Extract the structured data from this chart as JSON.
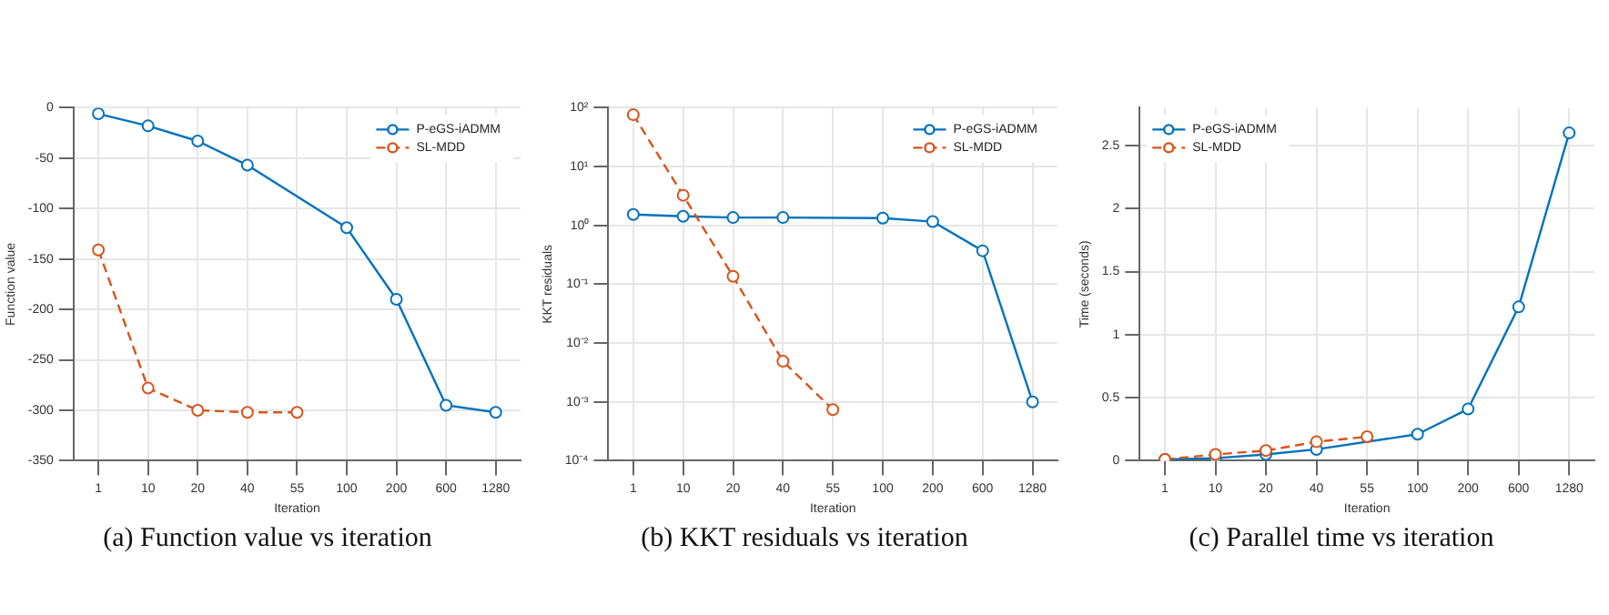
{
  "chart_data": [
    {
      "type": "line",
      "xlabel": "Iteration",
      "ylabel": "Function value",
      "categories": [
        "1",
        "10",
        "20",
        "40",
        "55",
        "100",
        "200",
        "600",
        "1280"
      ],
      "series": [
        {
          "name": "P-eGS-iADMM",
          "color": "#0072bd",
          "line_style": "solid",
          "values": [
            -6,
            -18,
            -33,
            -57,
            null,
            -119,
            -190,
            -295,
            -302
          ]
        },
        {
          "name": "SL-MDD",
          "color": "#d95319",
          "line_style": "dashed",
          "values": [
            -141,
            -278,
            -300,
            -302,
            -302,
            null,
            null,
            null,
            null
          ]
        }
      ],
      "ylim": [
        -350,
        0
      ],
      "yticks": [
        -350,
        -300,
        -250,
        -200,
        -150,
        -100,
        -50,
        0
      ],
      "grid": true,
      "legend": "top right",
      "marker": "circle",
      "annotations": [
        "(a) Function value vs iteration"
      ]
    },
    {
      "type": "line",
      "xlabel": "Iteration",
      "ylabel": "KKT residuals",
      "categories": [
        "1",
        "10",
        "20",
        "40",
        "55",
        "100",
        "200",
        "600",
        "1280"
      ],
      "series": [
        {
          "name": "P-eGS-iADMM",
          "color": "#0072bd",
          "line_style": "solid",
          "values": [
            1.53,
            1.43,
            1.36,
            1.36,
            null,
            1.33,
            1.16,
            0.37,
            0.001
          ]
        },
        {
          "name": "SL-MDD",
          "color": "#d95319",
          "line_style": "dashed",
          "values": [
            76,
            3.25,
            0.136,
            0.0049,
            0.00074,
            null,
            null,
            null,
            null
          ]
        }
      ],
      "log": "y",
      "ylim": [
        0.0001,
        100
      ],
      "yticks": [
        {
          "value": 0.0001,
          "label": "10⁻⁴"
        },
        {
          "value": 0.001,
          "label": "10⁻³"
        },
        {
          "value": 0.01,
          "label": "10⁻²"
        },
        {
          "value": 0.1,
          "label": "10⁻¹"
        },
        {
          "value": 1,
          "label": "10⁰"
        },
        {
          "value": 10,
          "label": "10¹"
        },
        {
          "value": 100,
          "label": "10²"
        }
      ],
      "grid": true,
      "legend": "top right",
      "marker": "circle",
      "annotations": [
        "(b) KKT residuals vs iteration"
      ]
    },
    {
      "type": "line",
      "xlabel": "Iteration",
      "ylabel": "Time (seconds)",
      "categories": [
        "1",
        "10",
        "20",
        "40",
        "55",
        "100",
        "200",
        "600",
        "1280"
      ],
      "series": [
        {
          "name": "P-eGS-iADMM",
          "color": "#0072bd",
          "line_style": "solid",
          "values": [
            0.01,
            0.02,
            0.05,
            0.09,
            null,
            0.21,
            0.41,
            1.22,
            2.6
          ]
        },
        {
          "name": "SL-MDD",
          "color": "#d95319",
          "line_style": "dashed",
          "values": [
            0.01,
            0.05,
            0.08,
            0.15,
            0.19,
            null,
            null,
            null,
            null
          ]
        }
      ],
      "ylim": [
        0,
        2.8
      ],
      "yticks": [
        0,
        0.5,
        1,
        1.5,
        2,
        2.5
      ],
      "grid": true,
      "legend": "top left",
      "marker": "circle",
      "annotations": [
        "(c) Parallel time vs iteration"
      ]
    }
  ]
}
